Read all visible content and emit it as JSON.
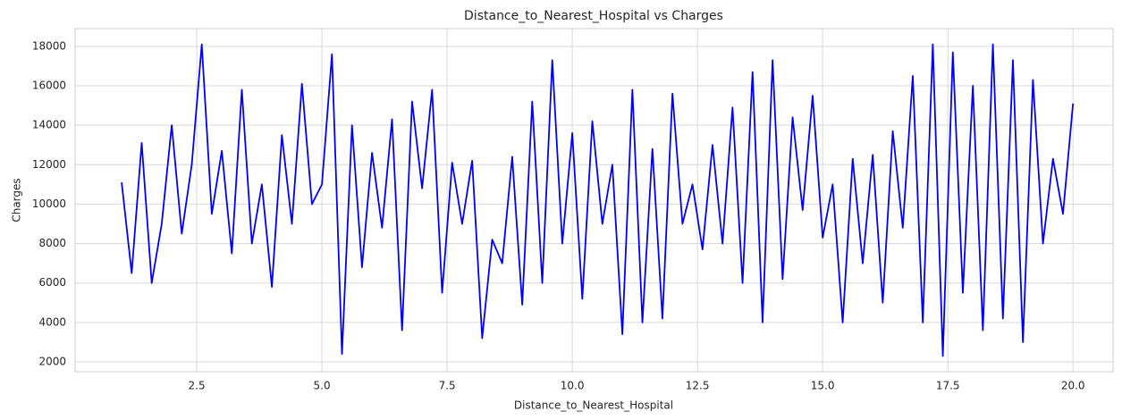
{
  "chart_data": {
    "type": "line",
    "title": "Distance_to_Nearest_Hospital vs Charges",
    "x_label": "Distance_to_Nearest_Hospital",
    "y_label": "Charges",
    "x": [
      1.0,
      1.2,
      1.4,
      1.6,
      1.8,
      2.0,
      2.2,
      2.4,
      2.6,
      2.8,
      3.0,
      3.2,
      3.4,
      3.6,
      3.8,
      4.0,
      4.2,
      4.4,
      4.6,
      4.8,
      5.0,
      5.2,
      5.4,
      5.6,
      5.8,
      6.0,
      6.2,
      6.4,
      6.6,
      6.8,
      7.0,
      7.2,
      7.4,
      7.6,
      7.8,
      8.0,
      8.2,
      8.4,
      8.6,
      8.8,
      9.0,
      9.2,
      9.4,
      9.6,
      9.8,
      10.0,
      10.2,
      10.4,
      10.6,
      10.8,
      11.0,
      11.2,
      11.4,
      11.6,
      11.8,
      12.0,
      12.2,
      12.4,
      12.6,
      12.8,
      13.0,
      13.2,
      13.4,
      13.6,
      13.8,
      14.0,
      14.2,
      14.4,
      14.6,
      14.8,
      15.0,
      15.2,
      15.4,
      15.6,
      15.8,
      16.0,
      16.2,
      16.4,
      16.6,
      16.8,
      17.0,
      17.2,
      17.4,
      17.6,
      17.8,
      18.0,
      18.2,
      18.4,
      18.6,
      18.8,
      19.0,
      19.2,
      19.4,
      19.6,
      19.8,
      20.0
    ],
    "series": [
      {
        "name": "Charges",
        "color": "#0000ff",
        "values": [
          11100,
          6500,
          13100,
          6000,
          9000,
          14000,
          8500,
          12000,
          18100,
          9500,
          12700,
          7500,
          15800,
          8000,
          11000,
          5800,
          13500,
          9000,
          16100,
          10000,
          11000,
          17600,
          2400,
          14000,
          6800,
          12600,
          8800,
          14300,
          3600,
          15200,
          10800,
          15800,
          5500,
          12100,
          9000,
          12200,
          3200,
          8200,
          7000,
          12400,
          4900,
          15200,
          6000,
          17300,
          8000,
          13600,
          5200,
          14200,
          9000,
          12000,
          3400,
          15800,
          4000,
          12800,
          4200,
          15600,
          9000,
          11000,
          7700,
          13000,
          8000,
          14900,
          6000,
          16700,
          4000,
          17300,
          6200,
          14400,
          9700,
          15500,
          8300,
          11000,
          4000,
          12300,
          7000,
          12500,
          5000,
          13700,
          8800,
          16500,
          4000,
          18100,
          2300,
          17700,
          5500,
          16000,
          3600,
          18100,
          4200,
          17300,
          3000,
          16300,
          8000,
          12300,
          9500,
          15100
        ]
      }
    ],
    "xlim": [
      0.07,
      20.8
    ],
    "ylim": [
      1500,
      18900
    ],
    "xticks": [
      2.5,
      {
        "value": 5,
        "label": "5.0"
      },
      7.5,
      {
        "value": 10,
        "label": "10.0"
      },
      12.5,
      {
        "value": 15,
        "label": "15.0"
      },
      17.5,
      {
        "value": 20,
        "label": "20.0"
      }
    ],
    "yticks": [
      2000,
      4000,
      6000,
      8000,
      10000,
      12000,
      14000,
      16000,
      18000
    ],
    "grid": true
  }
}
